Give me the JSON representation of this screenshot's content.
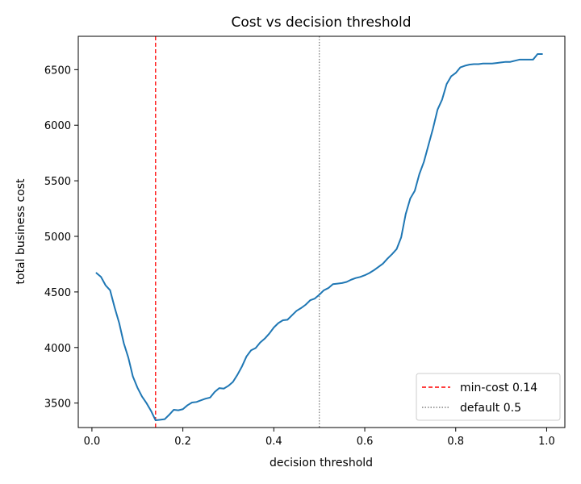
{
  "chart_data": {
    "type": "line",
    "title": "Cost vs decision threshold",
    "xlabel": "decision threshold",
    "ylabel": "total business cost",
    "xlim": [
      -0.03,
      1.04
    ],
    "ylim": [
      3280,
      6800
    ],
    "xticks": [
      0.0,
      0.2,
      0.4,
      0.6,
      0.8,
      1.0
    ],
    "xtick_labels": [
      "0.0",
      "0.2",
      "0.4",
      "0.6",
      "0.8",
      "1.0"
    ],
    "yticks": [
      3500,
      4000,
      4500,
      5000,
      5500,
      6000,
      6500
    ],
    "ytick_labels": [
      "3500",
      "4000",
      "4500",
      "5000",
      "5500",
      "6000",
      "6500"
    ],
    "grid": false,
    "legend_position": "bottom-right",
    "series": [
      {
        "color": "#1f77b4",
        "x": [
          0.01,
          0.02,
          0.03,
          0.04,
          0.05,
          0.06,
          0.07,
          0.08,
          0.09,
          0.1,
          0.11,
          0.12,
          0.13,
          0.14,
          0.15,
          0.16,
          0.17,
          0.18,
          0.19,
          0.2,
          0.21,
          0.22,
          0.23,
          0.24,
          0.25,
          0.26,
          0.27,
          0.28,
          0.29,
          0.3,
          0.31,
          0.32,
          0.33,
          0.34,
          0.35,
          0.36,
          0.37,
          0.38,
          0.39,
          0.4,
          0.41,
          0.42,
          0.43,
          0.44,
          0.45,
          0.46,
          0.47,
          0.48,
          0.49,
          0.5,
          0.51,
          0.52,
          0.53,
          0.54,
          0.55,
          0.56,
          0.57,
          0.58,
          0.59,
          0.6,
          0.61,
          0.62,
          0.63,
          0.64,
          0.65,
          0.66,
          0.67,
          0.68,
          0.69,
          0.7,
          0.71,
          0.72,
          0.73,
          0.74,
          0.75,
          0.76,
          0.77,
          0.78,
          0.79,
          0.8,
          0.81,
          0.82,
          0.83,
          0.84,
          0.85,
          0.86,
          0.87,
          0.88,
          0.89,
          0.9,
          0.91,
          0.92,
          0.93,
          0.94,
          0.95,
          0.96,
          0.97,
          0.98,
          0.99
        ],
        "y": [
          4670,
          4635,
          4560,
          4515,
          4360,
          4220,
          4040,
          3910,
          3740,
          3640,
          3560,
          3500,
          3430,
          3345,
          3350,
          3355,
          3395,
          3440,
          3435,
          3445,
          3480,
          3505,
          3510,
          3525,
          3540,
          3550,
          3600,
          3635,
          3630,
          3655,
          3690,
          3755,
          3830,
          3920,
          3975,
          3995,
          4045,
          4080,
          4125,
          4180,
          4220,
          4245,
          4250,
          4290,
          4330,
          4355,
          4385,
          4425,
          4440,
          4475,
          4515,
          4535,
          4570,
          4575,
          4580,
          4590,
          4610,
          4625,
          4635,
          4650,
          4670,
          4695,
          4725,
          4755,
          4800,
          4840,
          4885,
          4990,
          5200,
          5340,
          5410,
          5560,
          5670,
          5820,
          5970,
          6140,
          6230,
          6370,
          6440,
          6470,
          6520,
          6535,
          6545,
          6550,
          6550,
          6555,
          6555,
          6555,
          6560,
          6565,
          6570,
          6570,
          6580,
          6590,
          6590,
          6590,
          6590,
          6640,
          6640
        ]
      }
    ],
    "reference_lines": [
      {
        "x": 0.14,
        "color": "#ff0000",
        "style": "dashed",
        "label": "min-cost 0.14"
      },
      {
        "x": 0.5,
        "color": "#808080",
        "style": "dotted",
        "label": "default 0.5"
      }
    ]
  }
}
